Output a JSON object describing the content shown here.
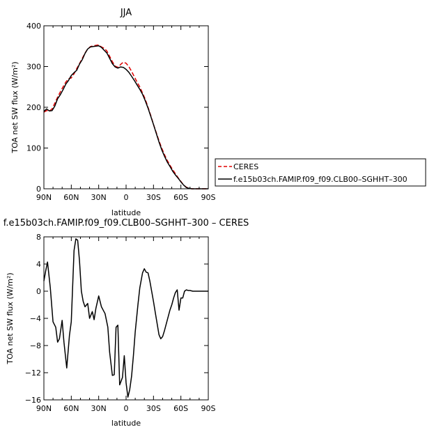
{
  "chart_data": [
    {
      "type": "line",
      "title": "JJA",
      "xlabel": "latitude",
      "ylabel": "TOA net SW flux (W/m²)",
      "xlim": [
        90,
        -90
      ],
      "ylim": [
        0,
        400
      ],
      "x_ticks": [
        90,
        60,
        30,
        0,
        -30,
        -60,
        -90
      ],
      "x_tick_labels": [
        "90N",
        "60N",
        "30N",
        "0",
        "30S",
        "60S",
        "90S"
      ],
      "y_ticks": [
        0,
        100,
        200,
        300,
        400
      ],
      "y_tick_labels": [
        "0",
        "100",
        "200",
        "300",
        "400"
      ],
      "legend_position": "right",
      "x": [
        90,
        87,
        84,
        81,
        78,
        75,
        72,
        69,
        66,
        63,
        60,
        57,
        54,
        51,
        48,
        45,
        42,
        39,
        36,
        33,
        30,
        27,
        24,
        21,
        18,
        15,
        12,
        9,
        6,
        3,
        0,
        -3,
        -6,
        -9,
        -12,
        -15,
        -18,
        -21,
        -24,
        -27,
        -30,
        -33,
        -36,
        -39,
        -42,
        -45,
        -48,
        -51,
        -54,
        -57,
        -60,
        -63,
        -66,
        -69,
        -72,
        -75,
        -78,
        -81,
        -84,
        -87,
        -90
      ],
      "series": [
        {
          "name": "CERES",
          "color": "#e00000",
          "dash": "dashed",
          "values": [
            188,
            192,
            191,
            196,
            210,
            225,
            238,
            250,
            262,
            270,
            272,
            282,
            295,
            307,
            320,
            333,
            343,
            349,
            351,
            352,
            353,
            348,
            345,
            338,
            325,
            312,
            301,
            298,
            305,
            311,
            308,
            300,
            288,
            275,
            262,
            250,
            235,
            220,
            200,
            180,
            158,
            138,
            118,
            100,
            84,
            70,
            58,
            47,
            37,
            27,
            18,
            9,
            4,
            1,
            0,
            0,
            0,
            0,
            0,
            0,
            0
          ]
        },
        {
          "name": "f.e15b03ch.FAMIP.f09_f09.CLB00–SGHHT–300",
          "color": "#000000",
          "dash": "solid",
          "values": [
            190,
            196,
            191,
            192,
            203,
            221,
            231,
            243,
            257,
            266,
            278,
            285,
            291,
            306,
            317,
            332,
            343,
            348,
            349,
            350,
            351,
            347,
            340,
            333,
            320,
            307,
            299,
            296,
            299,
            298,
            293,
            286,
            276,
            266,
            255,
            244,
            232,
            216,
            198,
            178,
            158,
            136,
            115,
            96,
            80,
            66,
            55,
            43,
            34,
            26,
            17,
            9,
            3,
            1,
            0,
            0,
            0,
            0,
            0,
            0,
            0
          ]
        }
      ]
    },
    {
      "type": "line",
      "title": "f.e15b03ch.FAMIP.f09_f09.CLB00–SGHHT–300 – CERES",
      "xlabel": "latitude",
      "ylabel": "TOA net SW flux (W/m²)",
      "xlim": [
        90,
        -90
      ],
      "ylim": [
        -16,
        8
      ],
      "x_ticks": [
        90,
        60,
        30,
        0,
        -30,
        -60,
        -90
      ],
      "x_tick_labels": [
        "90N",
        "60N",
        "30N",
        "0",
        "30S",
        "60S",
        "90S"
      ],
      "y_ticks": [
        -16,
        -12,
        -8,
        -4,
        0,
        4,
        8
      ],
      "y_tick_labels": [
        "−16",
        "−12",
        "−8",
        "−4",
        "0",
        "4",
        "8"
      ],
      "x": [
        90,
        88,
        86,
        83,
        80,
        77,
        75,
        73,
        70,
        68,
        65,
        62,
        60,
        57,
        55,
        53,
        51,
        49,
        47,
        45,
        42,
        40,
        37,
        35,
        33,
        30,
        27,
        25,
        23,
        20,
        18,
        15,
        13,
        11,
        9,
        7,
        4,
        2,
        0,
        -2,
        -4,
        -6,
        -8,
        -10,
        -13,
        -15,
        -18,
        -20,
        -22,
        -24,
        -26,
        -28,
        -30,
        -32,
        -34,
        -36,
        -38,
        -40,
        -42,
        -44,
        -46,
        -48,
        -50,
        -52,
        -54,
        -56,
        -58,
        -60,
        -62,
        -64,
        -66,
        -68,
        -70,
        -73,
        -76,
        -80,
        -85,
        -90
      ],
      "series": [
        {
          "name": "",
          "color": "#000000",
          "dash": "solid",
          "values": [
            1.5,
            3.0,
            4.3,
            0.5,
            -4.5,
            -5.3,
            -7.5,
            -7.0,
            -4.3,
            -7.5,
            -11.3,
            -6.5,
            -4.5,
            6.0,
            7.7,
            7.5,
            4.5,
            0.0,
            -1.5,
            -2.3,
            -1.8,
            -4.0,
            -3.0,
            -4.2,
            -2.5,
            -0.7,
            -2.3,
            -2.8,
            -3.3,
            -5.3,
            -9.0,
            -12.4,
            -12.3,
            -5.3,
            -5.0,
            -13.8,
            -12.7,
            -9.5,
            -13.5,
            -15.6,
            -14.5,
            -12.5,
            -9.5,
            -6.0,
            -2.0,
            0.5,
            2.7,
            3.3,
            2.8,
            2.7,
            1.5,
            0.0,
            -1.5,
            -3.2,
            -4.8,
            -6.4,
            -7.0,
            -6.7,
            -5.8,
            -4.8,
            -3.8,
            -2.8,
            -2.0,
            -1.0,
            -0.2,
            0.2,
            -2.8,
            -1.0,
            -1.0,
            0.0,
            0.2,
            0.1,
            0.1,
            0.0,
            0.0,
            0.0,
            0.0,
            0.0
          ]
        }
      ]
    }
  ]
}
